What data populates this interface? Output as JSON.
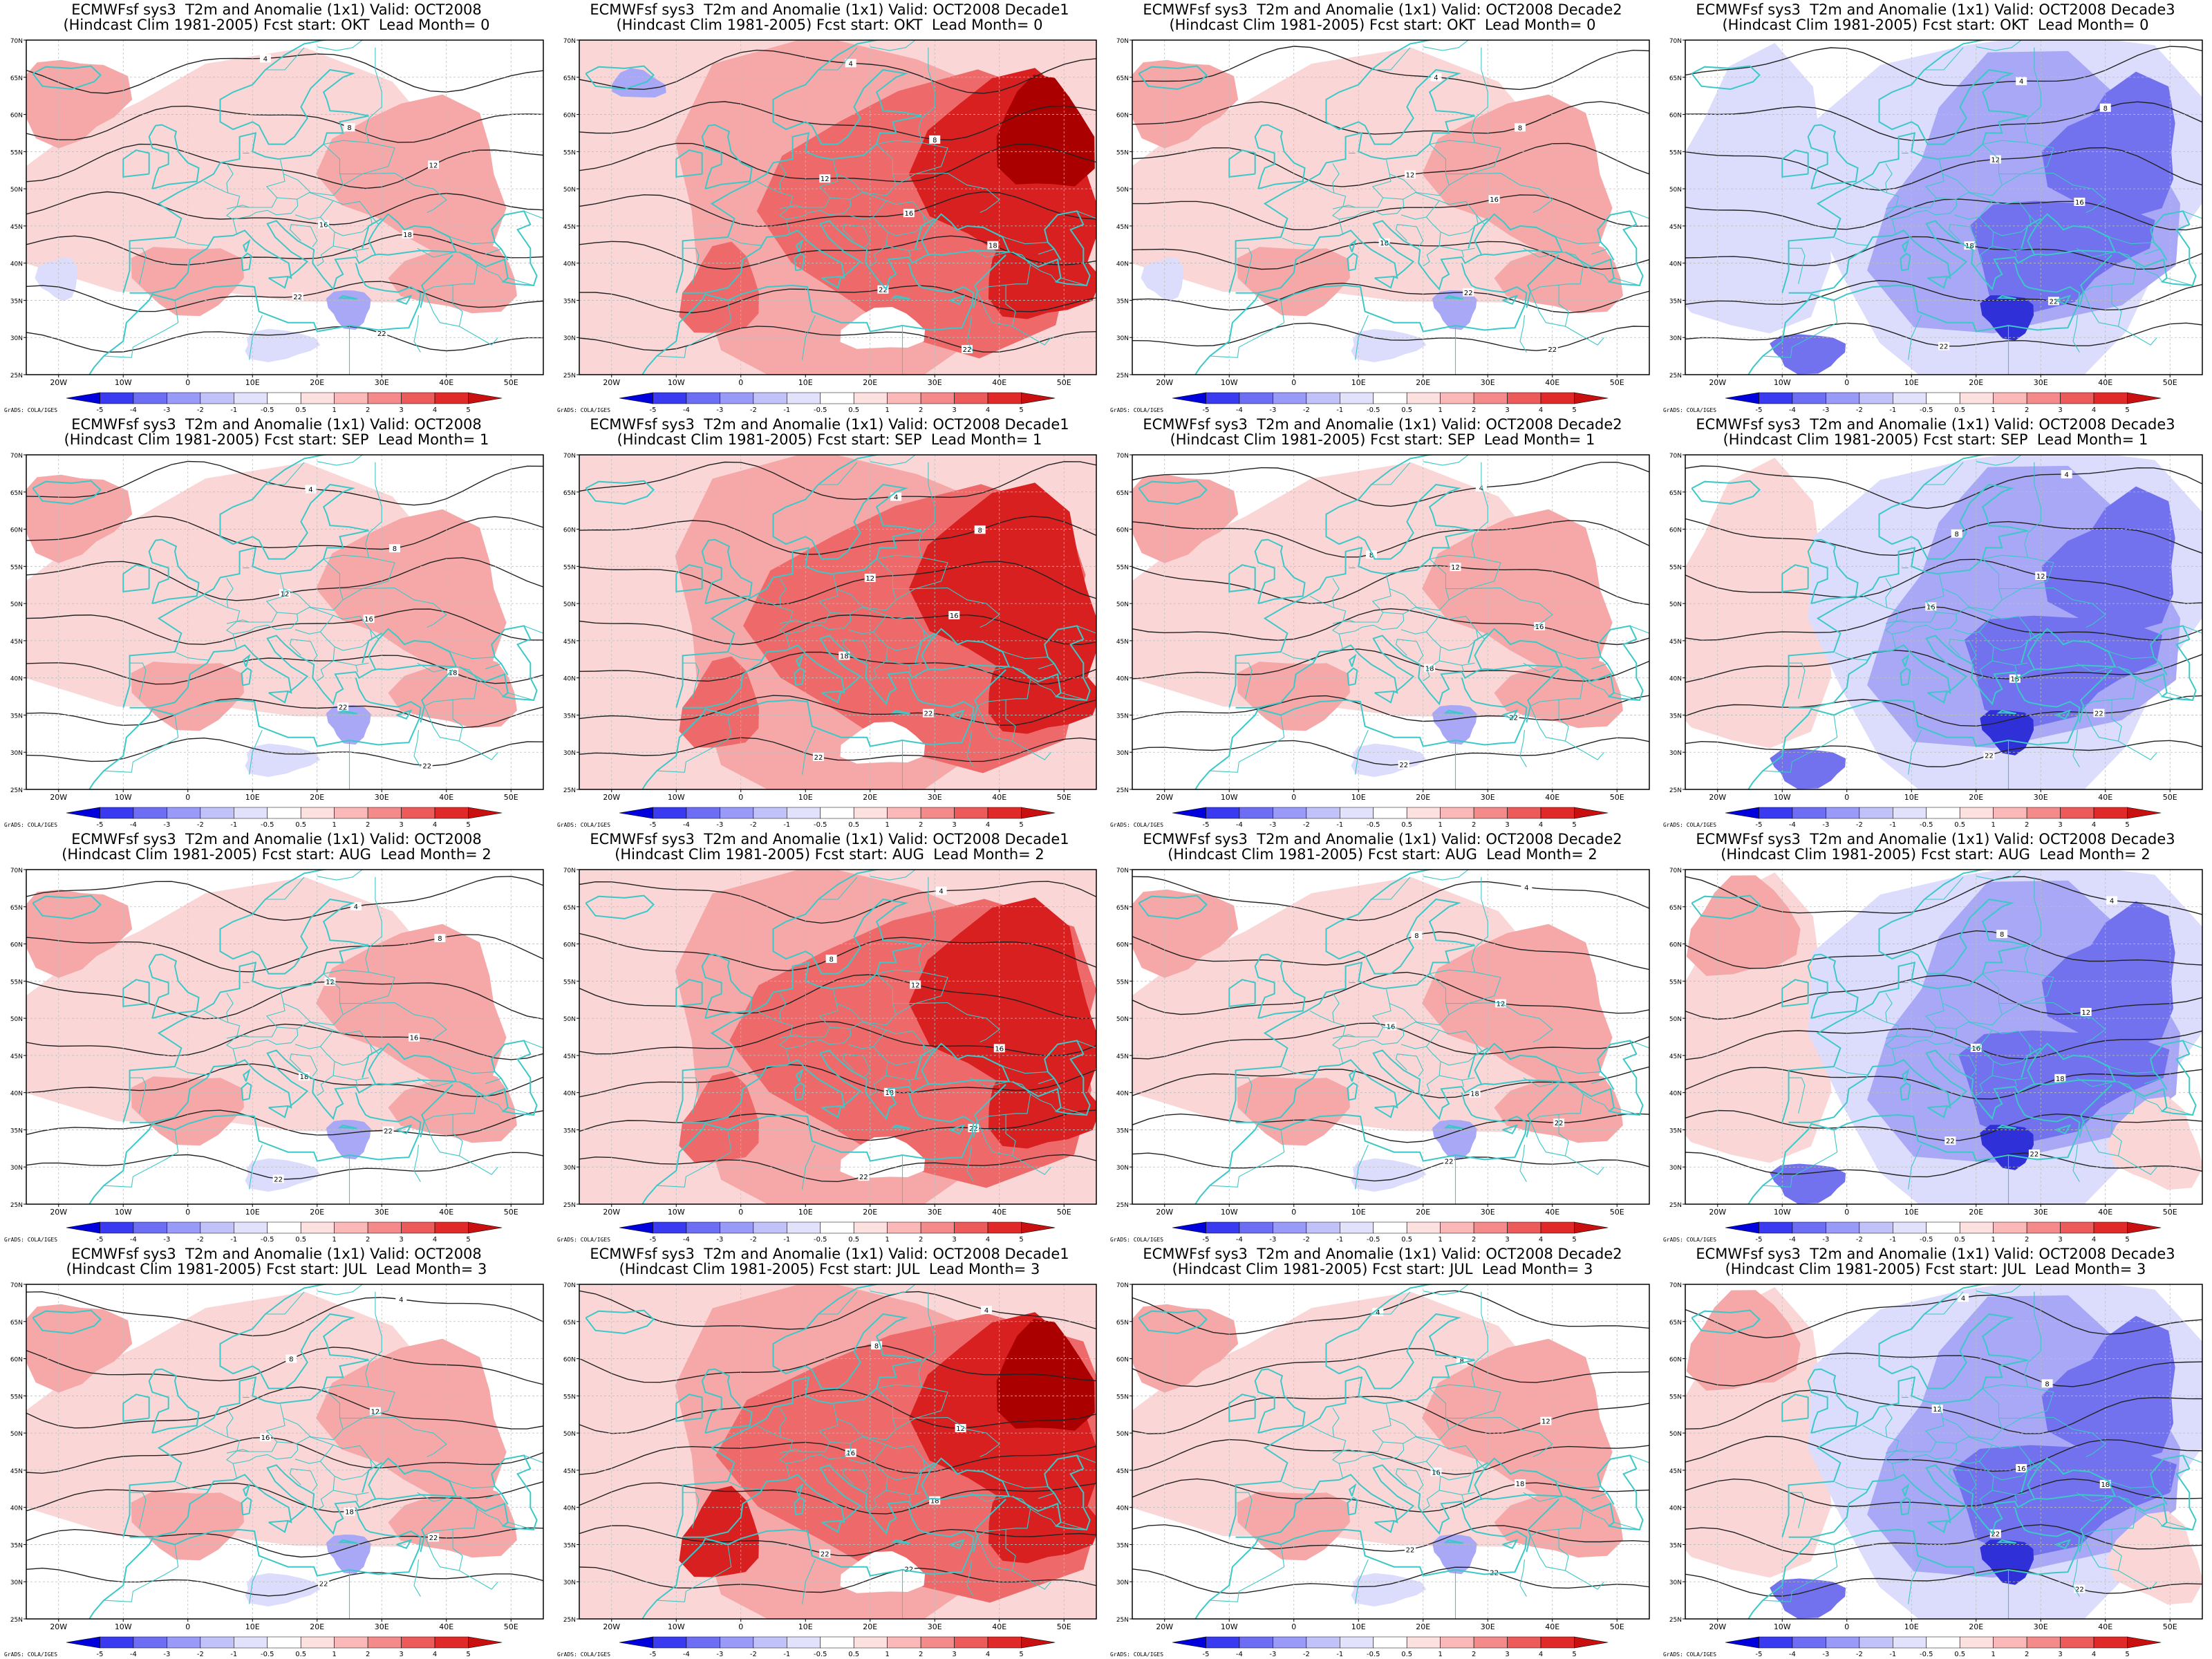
{
  "figure": {
    "model": "ECMWFsf sys3",
    "variable": "T2m and Anomalie (1x1)",
    "valid": "OCT2008",
    "climatology": "Hindcast Clim 1981-2005",
    "credit": "GrADS: COLA/IGES"
  },
  "columns": [
    {
      "valid_label": "Valid: OCT2008",
      "tone": "warm-weak"
    },
    {
      "valid_label": "Valid: OCT2008 Decade1",
      "tone": "warm-strong"
    },
    {
      "valid_label": "Valid: OCT2008 Decade2",
      "tone": "warm-weak"
    },
    {
      "valid_label": "Valid: OCT2008 Decade3",
      "tone": "cold"
    }
  ],
  "rows": [
    {
      "fcst_start": "OKT",
      "lead_month": "0"
    },
    {
      "fcst_start": "SEP",
      "lead_month": "1"
    },
    {
      "fcst_start": "AUG",
      "lead_month": "2"
    },
    {
      "fcst_start": "JUL",
      "lead_month": "3"
    }
  ],
  "panels": [
    {
      "line1": "ECMWFsf sys3  T2m and Anomalie (1x1) Valid: OCT2008",
      "line2": "(Hindcast Clim 1981-2005) Fcst start: OKT  Lead Month= 0",
      "tone": "warm-weak"
    },
    {
      "line1": "ECMWFsf sys3  T2m and Anomalie (1x1) Valid: OCT2008 Decade1",
      "line2": "(Hindcast Clim 1981-2005) Fcst start: OKT  Lead Month= 0",
      "tone": "warm-strong"
    },
    {
      "line1": "ECMWFsf sys3  T2m and Anomalie (1x1) Valid: OCT2008 Decade2",
      "line2": "(Hindcast Clim 1981-2005) Fcst start: OKT  Lead Month= 0",
      "tone": "warm-weak"
    },
    {
      "line1": "ECMWFsf sys3  T2m and Anomalie (1x1) Valid: OCT2008 Decade3",
      "line2": "(Hindcast Clim 1981-2005) Fcst start: OKT  Lead Month= 0",
      "tone": "cold"
    },
    {
      "line1": "ECMWFsf sys3  T2m and Anomalie (1x1) Valid: OCT2008",
      "line2": "(Hindcast Clim 1981-2005) Fcst start: SEP  Lead Month= 1",
      "tone": "warm-weak"
    },
    {
      "line1": "ECMWFsf sys3  T2m and Anomalie (1x1) Valid: OCT2008 Decade1",
      "line2": "(Hindcast Clim 1981-2005) Fcst start: SEP  Lead Month= 1",
      "tone": "warm-strong"
    },
    {
      "line1": "ECMWFsf sys3  T2m and Anomalie (1x1) Valid: OCT2008 Decade2",
      "line2": "(Hindcast Clim 1981-2005) Fcst start: SEP  Lead Month= 1",
      "tone": "warm-weak"
    },
    {
      "line1": "ECMWFsf sys3  T2m and Anomalie (1x1) Valid: OCT2008 Decade3",
      "line2": "(Hindcast Clim 1981-2005) Fcst start: SEP  Lead Month= 1",
      "tone": "cold"
    },
    {
      "line1": "ECMWFsf sys3  T2m and Anomalie (1x1) Valid: OCT2008",
      "line2": "(Hindcast Clim 1981-2005) Fcst start: AUG  Lead Month= 2",
      "tone": "warm-weak"
    },
    {
      "line1": "ECMWFsf sys3  T2m and Anomalie (1x1) Valid: OCT2008 Decade1",
      "line2": "(Hindcast Clim 1981-2005) Fcst start: AUG  Lead Month= 2",
      "tone": "warm-strong"
    },
    {
      "line1": "ECMWFsf sys3  T2m and Anomalie (1x1) Valid: OCT2008 Decade2",
      "line2": "(Hindcast Clim 1981-2005) Fcst start: AUG  Lead Month= 2",
      "tone": "warm-weak"
    },
    {
      "line1": "ECMWFsf sys3  T2m and Anomalie (1x1) Valid: OCT2008 Decade3",
      "line2": "(Hindcast Clim 1981-2005) Fcst start: AUG  Lead Month= 2",
      "tone": "cold"
    },
    {
      "line1": "ECMWFsf sys3  T2m and Anomalie (1x1) Valid: OCT2008",
      "line2": "(Hindcast Clim 1981-2005) Fcst start: JUL  Lead Month= 3",
      "tone": "warm-weak"
    },
    {
      "line1": "ECMWFsf sys3  T2m and Anomalie (1x1) Valid: OCT2008 Decade1",
      "line2": "(Hindcast Clim 1981-2005) Fcst start: JUL  Lead Month= 3",
      "tone": "warm-strong"
    },
    {
      "line1": "ECMWFsf sys3  T2m and Anomalie (1x1) Valid: OCT2008 Decade2",
      "line2": "(Hindcast Clim 1981-2005) Fcst start: JUL  Lead Month= 3",
      "tone": "warm-weak"
    },
    {
      "line1": "ECMWFsf sys3  T2m and Anomalie (1x1) Valid: OCT2008 Decade3",
      "line2": "(Hindcast Clim 1981-2005) Fcst start: JUL  Lead Month= 3",
      "tone": "cold"
    }
  ],
  "map": {
    "lon_ticks": [
      "20W",
      "10W",
      "0",
      "10E",
      "20E",
      "30E",
      "40E",
      "50E"
    ],
    "lat_ticks": [
      "70N",
      "65N",
      "60N",
      "55N",
      "50N",
      "45N",
      "40N",
      "35N",
      "30N",
      "25N"
    ],
    "lon_range": [
      -25,
      55
    ],
    "lat_range": [
      25,
      70
    ],
    "contour_labels": [
      "4",
      "8",
      "12",
      "16",
      "18",
      "22"
    ],
    "coast_color": "#3cc8c8",
    "contour_color": "#222222"
  },
  "colorbar": {
    "labels": [
      "-5",
      "-4",
      "-3",
      "-2",
      "-1",
      "-0.5",
      "0.5",
      "1",
      "2",
      "3",
      "4",
      "5"
    ],
    "colors": [
      "#0000dd",
      "#3a3af0",
      "#6e6ef5",
      "#9a9af8",
      "#c2c2fb",
      "#e2e2fd",
      "#ffffff",
      "#fde0e0",
      "#fab8b8",
      "#f48a8a",
      "#ec5a5a",
      "#e02a2a",
      "#c81010"
    ]
  },
  "palette": {
    "warm_light": "#fbd6d6",
    "warm_mid": "#f6a8a8",
    "warm_strong": "#ee6a6a",
    "warm_deep": "#d82020",
    "warm_darkest": "#aa0000",
    "cold_light": "#dcdcfc",
    "cold_mid": "#a8a8f6",
    "cold_strong": "#7272ee",
    "cold_deep": "#3030d8"
  }
}
